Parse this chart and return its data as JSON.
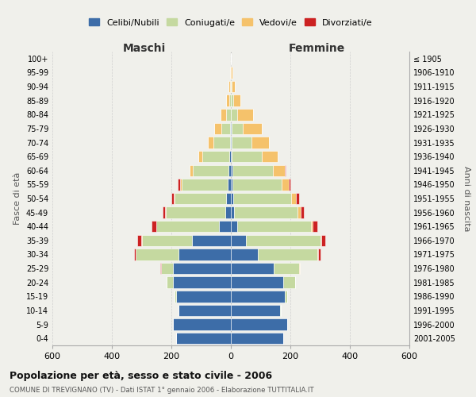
{
  "age_groups": [
    "0-4",
    "5-9",
    "10-14",
    "15-19",
    "20-24",
    "25-29",
    "30-34",
    "35-39",
    "40-44",
    "45-49",
    "50-54",
    "55-59",
    "60-64",
    "65-69",
    "70-74",
    "75-79",
    "80-84",
    "85-89",
    "90-94",
    "95-99",
    "100+"
  ],
  "birth_years": [
    "2001-2005",
    "1996-2000",
    "1991-1995",
    "1986-1990",
    "1981-1985",
    "1976-1980",
    "1971-1975",
    "1966-1970",
    "1961-1965",
    "1956-1960",
    "1951-1955",
    "1946-1950",
    "1941-1945",
    "1936-1940",
    "1931-1935",
    "1926-1930",
    "1921-1925",
    "1916-1920",
    "1911-1915",
    "1906-1910",
    "≤ 1905"
  ],
  "colors": {
    "celibi": "#3d6da8",
    "coniugati": "#c5d9a0",
    "vedovi": "#f5c26b",
    "divorziati": "#cc2222"
  },
  "males": {
    "celibi": [
      185,
      195,
      175,
      185,
      195,
      195,
      175,
      130,
      40,
      20,
      15,
      10,
      8,
      5,
      3,
      2,
      0,
      0,
      0,
      0,
      0
    ],
    "coniugati": [
      0,
      0,
      2,
      5,
      20,
      40,
      145,
      170,
      210,
      200,
      175,
      155,
      120,
      90,
      55,
      30,
      15,
      5,
      3,
      1,
      0
    ],
    "vedovi": [
      0,
      0,
      0,
      0,
      0,
      0,
      0,
      1,
      1,
      2,
      2,
      5,
      10,
      15,
      20,
      25,
      20,
      10,
      5,
      2,
      1
    ],
    "divorziati": [
      0,
      0,
      0,
      0,
      0,
      2,
      5,
      15,
      15,
      8,
      8,
      8,
      2,
      0,
      0,
      0,
      0,
      0,
      0,
      0,
      0
    ]
  },
  "females": {
    "nubili": [
      175,
      190,
      165,
      180,
      175,
      145,
      90,
      50,
      20,
      10,
      8,
      5,
      5,
      3,
      3,
      2,
      0,
      0,
      0,
      0,
      0
    ],
    "coniugate": [
      0,
      0,
      3,
      10,
      40,
      85,
      200,
      250,
      250,
      215,
      195,
      165,
      135,
      100,
      65,
      38,
      20,
      8,
      3,
      1,
      0
    ],
    "vedove": [
      0,
      0,
      0,
      0,
      0,
      1,
      2,
      3,
      5,
      10,
      15,
      25,
      40,
      55,
      60,
      65,
      55,
      25,
      10,
      3,
      1
    ],
    "divorziate": [
      0,
      0,
      0,
      0,
      0,
      2,
      8,
      15,
      15,
      10,
      10,
      5,
      3,
      0,
      0,
      0,
      0,
      0,
      0,
      0,
      0
    ]
  },
  "xlim": 600,
  "xticks": [
    -600,
    -400,
    -200,
    0,
    200,
    400,
    600
  ],
  "xticklabels": [
    "600",
    "400",
    "200",
    "0",
    "200",
    "400",
    "600"
  ],
  "title": "Popolazione per età, sesso e stato civile - 2006",
  "subtitle": "COMUNE DI TREVIGNANO (TV) - Dati ISTAT 1° gennaio 2006 - Elaborazione TUTTITALIA.IT",
  "ylabel_left": "Fasce di età",
  "ylabel_right": "Anni di nascita",
  "label_maschi": "Maschi",
  "label_femmine": "Femmine",
  "legend_labels": [
    "Celibi/Nubili",
    "Coniugati/e",
    "Vedovi/e",
    "Divorziati/e"
  ],
  "bg_color": "#f0f0eb",
  "grid_color": "#cccccc"
}
